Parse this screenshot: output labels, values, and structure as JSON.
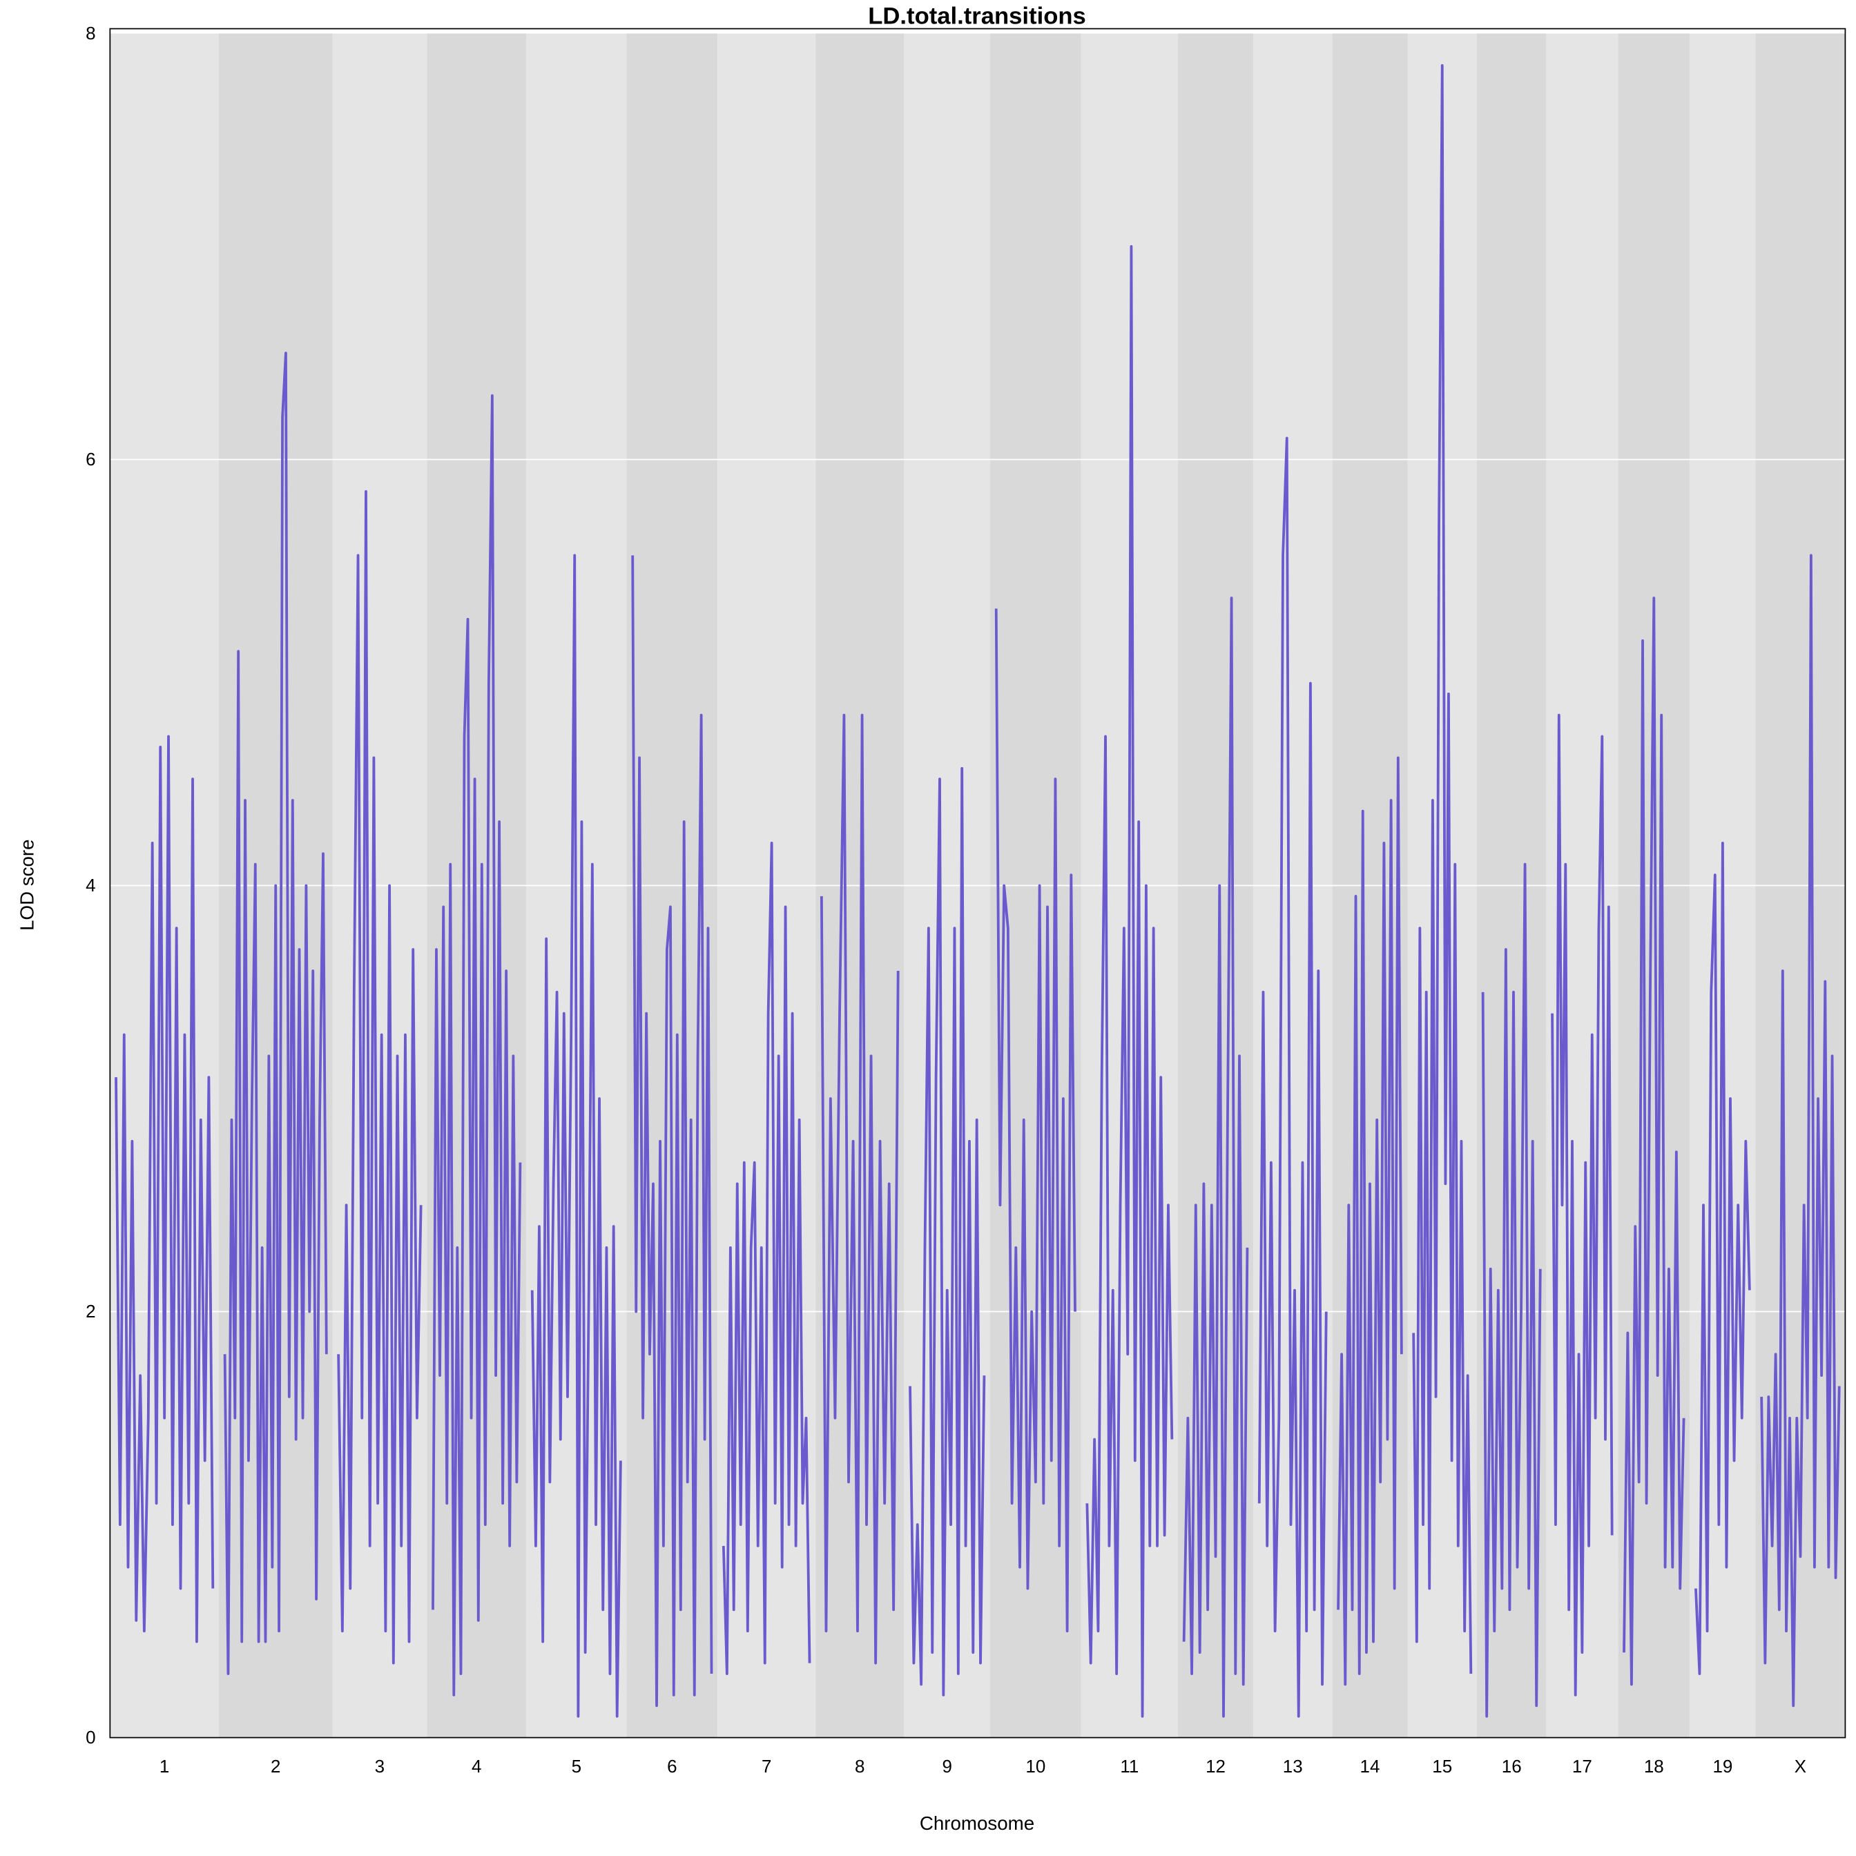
{
  "chart_data": {
    "type": "line",
    "title": "LD.total.transitions",
    "xlabel": "Chromosome",
    "ylabel": "LOD score",
    "ylim": [
      0,
      8
    ],
    "yticks": [
      "0",
      "2",
      "4",
      "6",
      "8"
    ],
    "grid": "horizontal",
    "line_color": "#6a5acd",
    "band_colors": [
      "#e5e5e5",
      "#d9d9d9"
    ],
    "chromosomes": [
      {
        "label": "1",
        "lod": [
          3.1,
          1.0,
          3.3,
          0.8,
          2.8,
          0.55,
          1.7,
          0.5,
          1.5,
          4.2,
          1.1,
          4.65,
          1.5,
          4.7,
          1.0,
          3.8,
          0.7,
          3.3,
          1.1,
          4.5,
          0.45,
          2.9,
          1.3,
          3.1,
          0.7
        ]
      },
      {
        "label": "2",
        "lod": [
          1.8,
          0.3,
          2.9,
          1.5,
          5.1,
          0.45,
          4.4,
          1.3,
          3.0,
          4.1,
          0.45,
          2.3,
          0.45,
          3.2,
          0.8,
          4.0,
          0.5,
          6.2,
          6.5,
          1.6,
          4.4,
          1.4,
          3.7,
          1.5,
          4.0,
          2.0,
          3.6,
          0.65,
          2.9,
          4.15,
          1.8
        ]
      },
      {
        "label": "3",
        "lod": [
          1.8,
          0.5,
          2.5,
          0.7,
          3.5,
          5.55,
          1.5,
          5.85,
          0.9,
          4.6,
          1.1,
          3.3,
          0.5,
          4.0,
          0.35,
          3.2,
          0.9,
          3.3,
          0.45,
          3.7,
          1.5,
          2.5
        ]
      },
      {
        "label": "4",
        "lod": [
          0.6,
          3.7,
          1.7,
          3.9,
          1.1,
          4.1,
          0.2,
          2.3,
          0.3,
          4.7,
          5.25,
          1.5,
          4.5,
          0.55,
          4.1,
          1.0,
          4.95,
          6.3,
          1.7,
          4.3,
          1.1,
          3.6,
          0.9,
          3.2,
          1.2,
          2.7
        ]
      },
      {
        "label": "5",
        "lod": [
          2.1,
          0.9,
          2.4,
          0.45,
          3.75,
          1.2,
          2.6,
          3.5,
          1.4,
          3.4,
          1.6,
          3.3,
          5.55,
          0.1,
          4.3,
          0.4,
          2.1,
          4.1,
          1.0,
          3.0,
          0.6,
          2.3,
          0.3,
          2.4,
          0.1,
          1.3
        ]
      },
      {
        "label": "6",
        "lod": [
          5.55,
          2.0,
          4.6,
          1.5,
          3.4,
          1.8,
          2.6,
          0.15,
          2.8,
          0.9,
          3.7,
          3.9,
          0.2,
          3.3,
          0.6,
          4.3,
          1.2,
          2.9,
          0.2,
          3.2,
          4.8,
          1.4,
          3.8,
          0.3
        ]
      },
      {
        "label": "7",
        "lod": [
          0.9,
          0.3,
          2.3,
          0.6,
          2.6,
          1.0,
          2.7,
          0.5,
          2.3,
          2.7,
          0.9,
          2.3,
          0.35,
          3.4,
          4.2,
          1.1,
          3.2,
          0.8,
          3.9,
          1.0,
          3.4,
          0.9,
          2.9,
          1.1,
          1.5,
          0.35
        ]
      },
      {
        "label": "8",
        "lod": [
          3.95,
          0.5,
          3.0,
          1.5,
          3.4,
          4.8,
          1.2,
          2.8,
          0.5,
          4.8,
          1.0,
          3.2,
          0.35,
          2.8,
          1.1,
          2.6,
          0.6,
          3.6
        ]
      },
      {
        "label": "9",
        "lod": [
          1.65,
          0.35,
          1.0,
          0.25,
          2.3,
          3.8,
          0.4,
          3.1,
          4.5,
          0.2,
          2.1,
          1.0,
          3.8,
          0.3,
          4.55,
          0.9,
          2.8,
          0.4,
          2.9,
          0.35,
          1.7
        ]
      },
      {
        "label": "10",
        "lod": [
          5.3,
          2.5,
          4.0,
          3.8,
          1.1,
          2.3,
          0.8,
          2.9,
          0.7,
          2.0,
          1.2,
          4.0,
          1.1,
          3.9,
          1.3,
          4.5,
          0.9,
          3.0,
          0.5,
          4.05,
          2.0
        ]
      },
      {
        "label": "11",
        "lod": [
          1.1,
          0.35,
          1.4,
          0.5,
          3.1,
          4.7,
          0.9,
          2.1,
          0.3,
          2.5,
          3.8,
          1.8,
          7.0,
          1.3,
          4.3,
          0.1,
          4.0,
          0.9,
          3.8,
          0.9,
          3.1,
          0.95,
          2.5,
          1.4
        ]
      },
      {
        "label": "12",
        "lod": [
          0.45,
          1.5,
          0.3,
          2.5,
          0.4,
          2.6,
          0.6,
          2.5,
          0.85,
          4.0,
          0.1,
          2.8,
          5.35,
          0.3,
          3.2,
          0.25,
          2.3
        ]
      },
      {
        "label": "13",
        "lod": [
          1.1,
          3.5,
          0.9,
          2.7,
          0.5,
          1.5,
          5.55,
          6.1,
          1.0,
          2.1,
          0.1,
          2.7,
          0.5,
          4.95,
          0.6,
          3.6,
          0.25,
          2.0
        ]
      },
      {
        "label": "14",
        "lod": [
          0.6,
          1.8,
          0.25,
          2.5,
          0.6,
          3.95,
          0.3,
          4.35,
          0.4,
          2.6,
          0.45,
          2.9,
          1.2,
          4.2,
          1.4,
          4.4,
          0.7,
          4.6,
          1.8
        ]
      },
      {
        "label": "15",
        "lod": [
          1.9,
          0.45,
          3.8,
          1.0,
          3.5,
          0.7,
          4.4,
          1.6,
          5.7,
          7.85,
          2.6,
          4.9,
          1.3,
          4.1,
          0.9,
          2.8,
          0.5,
          1.7,
          0.3
        ]
      },
      {
        "label": "16",
        "lod": [
          3.5,
          0.1,
          2.2,
          0.5,
          2.1,
          0.7,
          3.7,
          0.6,
          3.5,
          0.8,
          2.0,
          4.1,
          0.7,
          2.8,
          0.15,
          2.2
        ]
      },
      {
        "label": "17",
        "lod": [
          3.4,
          1.0,
          4.8,
          2.5,
          4.1,
          0.6,
          2.8,
          0.2,
          1.8,
          0.4,
          2.7,
          0.9,
          3.3,
          1.5,
          3.8,
          4.7,
          1.4,
          3.9,
          0.95
        ]
      },
      {
        "label": "18",
        "lod": [
          0.4,
          1.9,
          0.25,
          2.4,
          1.2,
          5.15,
          1.1,
          3.5,
          5.35,
          1.7,
          4.8,
          0.8,
          2.2,
          0.8,
          2.75,
          0.7,
          1.5
        ]
      },
      {
        "label": "19",
        "lod": [
          0.7,
          0.3,
          2.5,
          0.5,
          3.5,
          4.05,
          1.0,
          4.2,
          0.8,
          3.0,
          1.3,
          2.5,
          1.5,
          2.8,
          2.1
        ]
      },
      {
        "label": "X",
        "lod": [
          1.6,
          0.35,
          1.6,
          0.9,
          1.8,
          0.6,
          3.6,
          0.5,
          1.5,
          0.15,
          1.5,
          0.85,
          2.5,
          1.5,
          5.55,
          0.8,
          3.0,
          1.7,
          3.55,
          0.8,
          3.2,
          0.75,
          1.65
        ]
      }
    ]
  }
}
